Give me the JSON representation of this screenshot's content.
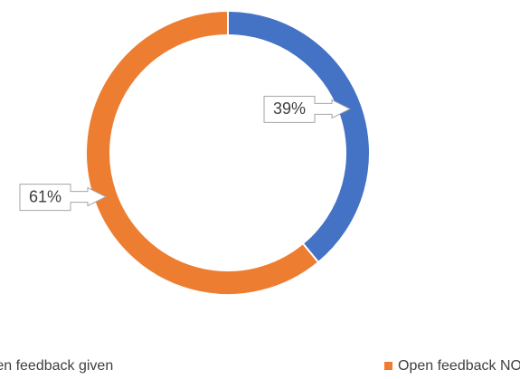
{
  "chart_data": {
    "type": "donut",
    "categories": [
      "Open feedback given",
      "Open feedback NOT given"
    ],
    "values": [
      39,
      61
    ],
    "value_labels": [
      "39%",
      "61%"
    ],
    "colors": [
      "#4472c4",
      "#ed7d31"
    ],
    "legend": "bottom"
  }
}
